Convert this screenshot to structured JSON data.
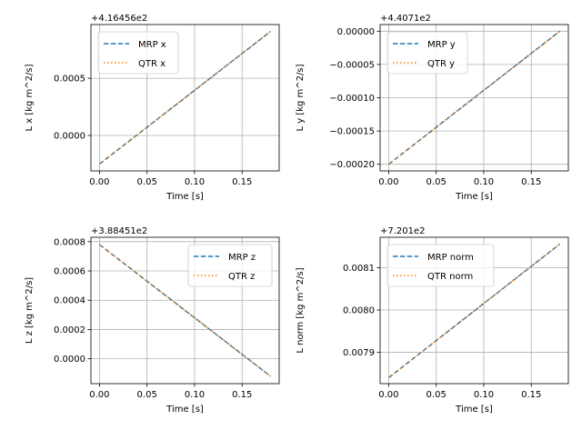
{
  "figure": {
    "background": "#ffffff",
    "grid_color": "#b0b0b0",
    "series_colors": {
      "MRP": "#1f77b4",
      "QTR": "#ff7f0e"
    },
    "series_styles": {
      "MRP": "dashed",
      "QTR": "dotted"
    }
  },
  "chart_data": [
    {
      "type": "line",
      "xlabel": "Time [s]",
      "ylabel": "L x [kg m^2/s]",
      "offset_label": "+4.16456e2",
      "xlim": [
        -0.009,
        0.189
      ],
      "ylim": [
        -0.00031,
        0.00097
      ],
      "xticks": [
        0,
        0.05,
        0.1,
        0.15
      ],
      "xtick_labels": [
        "0.00",
        "0.05",
        "0.10",
        "0.15"
      ],
      "yticks": [
        0,
        0.0005
      ],
      "ytick_labels": [
        "0.0000",
        "0.0005"
      ],
      "grid": true,
      "legend": "upper left",
      "series": [
        {
          "name": "MRP x",
          "style": "dashed",
          "color": "#1f77b4",
          "x": [
            0.0,
            0.18
          ],
          "y": [
            -0.00025,
            0.00091
          ]
        },
        {
          "name": "QTR x",
          "style": "dotted",
          "color": "#ff7f0e",
          "x": [
            0.0,
            0.18
          ],
          "y": [
            -0.00025,
            0.00091
          ]
        }
      ]
    },
    {
      "type": "line",
      "xlabel": "Time [s]",
      "ylabel": "L y [kg m^2/s]",
      "offset_label": "+4.4071e2",
      "xlim": [
        -0.009,
        0.189
      ],
      "ylim": [
        -0.00021,
        1e-05
      ],
      "xticks": [
        0,
        0.05,
        0.1,
        0.15
      ],
      "xtick_labels": [
        "0.00",
        "0.05",
        "0.10",
        "0.15"
      ],
      "yticks": [
        -0.0002,
        -0.00015,
        -0.0001,
        -5e-05,
        0
      ],
      "ytick_labels": [
        "−0.00020",
        "−0.00015",
        "−0.00010",
        "−0.00005",
        "0.00000"
      ],
      "grid": true,
      "legend": "upper left",
      "series": [
        {
          "name": "MRP y",
          "style": "dashed",
          "color": "#1f77b4",
          "x": [
            0.0,
            0.18
          ],
          "y": [
            -0.0002,
            0.0
          ]
        },
        {
          "name": "QTR y",
          "style": "dotted",
          "color": "#ff7f0e",
          "x": [
            0.0,
            0.18
          ],
          "y": [
            -0.0002,
            0.0
          ]
        }
      ]
    },
    {
      "type": "line",
      "xlabel": "Time [s]",
      "ylabel": "L z [kg m^2/s]",
      "offset_label": "+3.88451e2",
      "xlim": [
        -0.009,
        0.189
      ],
      "ylim": [
        -0.00017,
        0.00083
      ],
      "xticks": [
        0,
        0.05,
        0.1,
        0.15
      ],
      "xtick_labels": [
        "0.00",
        "0.05",
        "0.10",
        "0.15"
      ],
      "yticks": [
        0,
        0.0002,
        0.0004,
        0.0006,
        0.0008
      ],
      "ytick_labels": [
        "0.0000",
        "0.0002",
        "0.0004",
        "0.0006",
        "0.0008"
      ],
      "grid": true,
      "legend": "upper right",
      "series": [
        {
          "name": "MRP z",
          "style": "dashed",
          "color": "#1f77b4",
          "x": [
            0.0,
            0.18
          ],
          "y": [
            0.00078,
            -0.00012
          ]
        },
        {
          "name": "QTR z",
          "style": "dotted",
          "color": "#ff7f0e",
          "x": [
            0.0,
            0.18
          ],
          "y": [
            0.00078,
            -0.00012
          ]
        }
      ]
    },
    {
      "type": "line",
      "xlabel": "Time [s]",
      "ylabel": "L norm [kg m^2/s]",
      "offset_label": "+7.201e2",
      "xlim": [
        -0.009,
        0.189
      ],
      "ylim": [
        0.007826,
        0.008172
      ],
      "xticks": [
        0,
        0.05,
        0.1,
        0.15
      ],
      "xtick_labels": [
        "0.00",
        "0.05",
        "0.10",
        "0.15"
      ],
      "yticks": [
        0.0079,
        0.008,
        0.0081
      ],
      "ytick_labels": [
        "0.0079",
        "0.0080",
        "0.0081"
      ],
      "grid": true,
      "legend": "upper left",
      "series": [
        {
          "name": "MRP norm",
          "style": "dashed",
          "color": "#1f77b4",
          "x": [
            0.0,
            0.18
          ],
          "y": [
            0.00784,
            0.008156
          ]
        },
        {
          "name": "QTR norm",
          "style": "dotted",
          "color": "#ff7f0e",
          "x": [
            0.0,
            0.18
          ],
          "y": [
            0.00784,
            0.008156
          ]
        }
      ]
    }
  ]
}
